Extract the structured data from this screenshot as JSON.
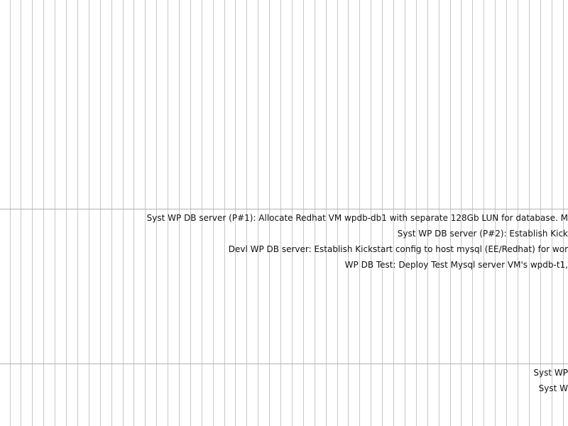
{
  "timeline": {
    "colors": {
      "vertical_grid": "#c8c8c8",
      "row_separator": "#b4b4b4",
      "text": "#111111",
      "background": "#ffffff"
    },
    "groups": [
      {
        "tasks": [
          "Syst WP DB server (P#1): Allocate Redhat VM wpdb-db1 with separate 128Gb LUN for database.  M",
          "Syst WP DB server (P#2): Establish Kick",
          "Devl WP DB server: Establish Kickstart config to host mysql (EE/Redhat) for wor",
          "WP DB Test: Deploy Test Mysql server VM's wpdb-t1,"
        ]
      },
      {
        "tasks": [
          "Syst WP",
          "Syst W"
        ]
      }
    ]
  }
}
